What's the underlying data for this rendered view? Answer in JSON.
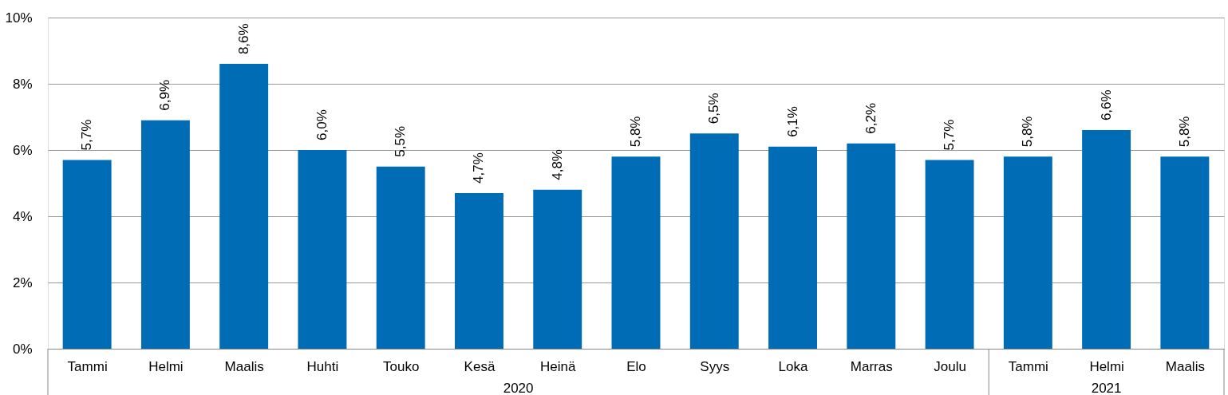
{
  "chart_data": {
    "type": "bar",
    "categories": [
      "Tammi",
      "Helmi",
      "Maalis",
      "Huhti",
      "Touko",
      "Kesä",
      "Heinä",
      "Elo",
      "Syys",
      "Loka",
      "Marras",
      "Joulu",
      "Tammi",
      "Helmi",
      "Maalis"
    ],
    "values": [
      5.7,
      6.9,
      8.6,
      6.0,
      5.5,
      4.7,
      4.8,
      5.8,
      6.5,
      6.1,
      6.2,
      5.7,
      5.8,
      6.6,
      5.8
    ],
    "value_labels": [
      "5,7%",
      "6,9%",
      "8,6%",
      "6,0%",
      "5,5%",
      "4,7%",
      "4,8%",
      "5,8%",
      "6,5%",
      "6,1%",
      "6,2%",
      "5,7%",
      "5,8%",
      "6,6%",
      "5,8%"
    ],
    "color": "#006cb6",
    "ylim": [
      0,
      10
    ],
    "yticks": [
      {
        "value": 0,
        "label": "0%"
      },
      {
        "value": 2,
        "label": "2%"
      },
      {
        "value": 4,
        "label": "4%"
      },
      {
        "value": 6,
        "label": "6%"
      },
      {
        "value": 8,
        "label": "8%"
      },
      {
        "value": 10,
        "label": "10%"
      }
    ],
    "grid": "y",
    "annotations": [
      "2020",
      "2021"
    ]
  }
}
